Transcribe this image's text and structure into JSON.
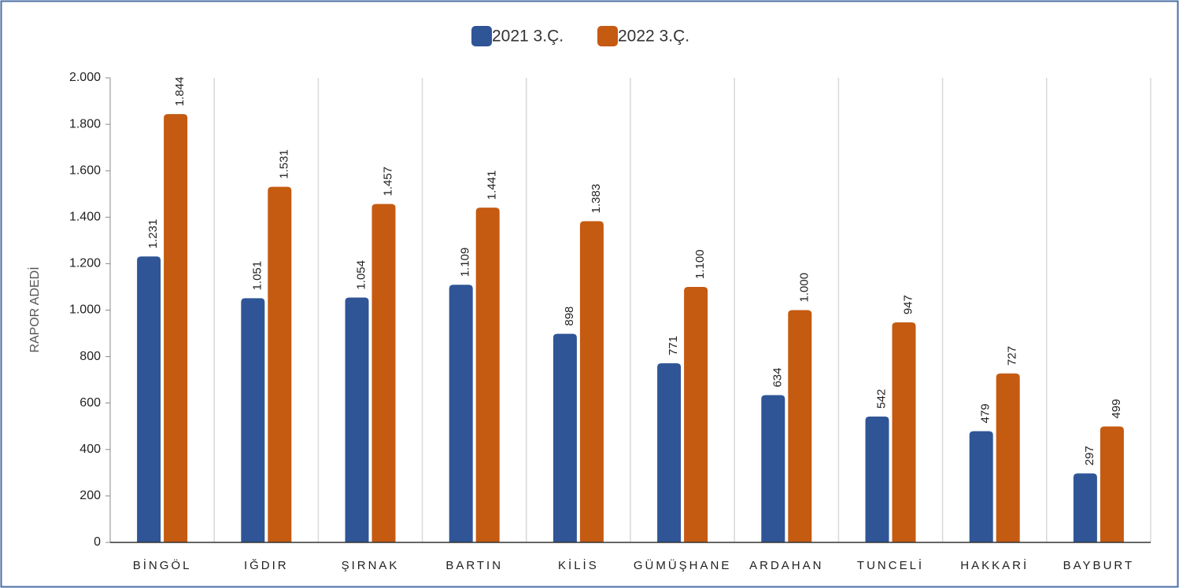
{
  "chart_data": {
    "type": "bar",
    "y_label": "RAPOR ADEDİ",
    "categories": [
      "BİNGÖL",
      "IĞDIR",
      "ŞIRNAK",
      "BARTIN",
      "KİLİS",
      "GÜMÜŞHANE",
      "ARDAHAN",
      "TUNCELİ",
      "HAKKARİ",
      "BAYBURT"
    ],
    "series": [
      {
        "name": "2021 3.Ç.",
        "color": "#2f5597",
        "values": [
          1231,
          1051,
          1054,
          1109,
          898,
          771,
          634,
          542,
          479,
          297
        ],
        "value_labels": [
          "1.231",
          "1.051",
          "1.054",
          "1.109",
          "898",
          "771",
          "634",
          "542",
          "479",
          "297"
        ]
      },
      {
        "name": "2022 3.Ç.",
        "color": "#c55a11",
        "values": [
          1844,
          1531,
          1457,
          1441,
          1383,
          1100,
          1000,
          947,
          727,
          499
        ],
        "value_labels": [
          "1.844",
          "1.531",
          "1.457",
          "1.441",
          "1.383",
          "1.100",
          "1.000",
          "947",
          "727",
          "499"
        ]
      }
    ],
    "ylim": [
      0,
      2000
    ],
    "yticks": [
      0,
      200,
      400,
      600,
      800,
      {
        "value": 1000,
        "label": "1.000"
      },
      {
        "value": 1200,
        "label": "1.200"
      },
      {
        "value": 1400,
        "label": "1.400"
      },
      {
        "value": 1600,
        "label": "1.600"
      },
      {
        "value": 1800,
        "label": "1.800"
      },
      {
        "value": 2000,
        "label": "2.000"
      }
    ],
    "legend": "top"
  }
}
